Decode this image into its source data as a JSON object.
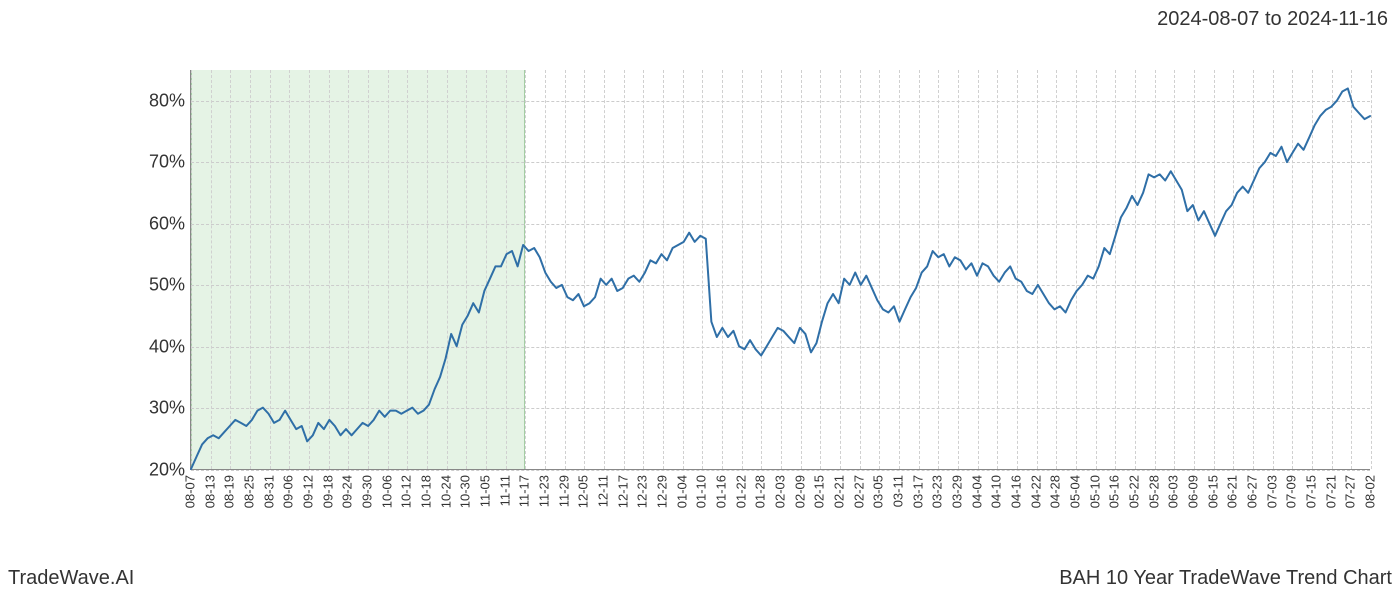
{
  "date_range": "2024-08-07 to 2024-11-16",
  "footer_left": "TradeWave.AI",
  "footer_right": "BAH 10 Year TradeWave Trend Chart",
  "chart": {
    "type": "line",
    "line_color": "#2f6fa7",
    "line_width": 2,
    "background_color": "#ffffff",
    "grid_color": "#d0d0d0",
    "highlight_color": "rgba(180,220,180,0.35)",
    "axis_color": "#888888",
    "text_color": "#333333",
    "ylim": [
      20,
      85
    ],
    "y_ticks": [
      20,
      30,
      40,
      50,
      60,
      70,
      80
    ],
    "y_tick_labels": [
      "20%",
      "30%",
      "40%",
      "50%",
      "60%",
      "70%",
      "80%"
    ],
    "y_label_fontsize": 18,
    "x_label_fontsize": 13,
    "x_label_rotation": -90,
    "x_labels": [
      "08-07",
      "08-13",
      "08-19",
      "08-25",
      "08-31",
      "09-06",
      "09-12",
      "09-18",
      "09-24",
      "09-30",
      "10-06",
      "10-12",
      "10-18",
      "10-24",
      "10-30",
      "11-05",
      "11-11",
      "11-17",
      "11-23",
      "11-29",
      "12-05",
      "12-11",
      "12-17",
      "12-23",
      "12-29",
      "01-04",
      "01-10",
      "01-16",
      "01-22",
      "01-28",
      "02-03",
      "02-09",
      "02-15",
      "02-21",
      "02-27",
      "03-05",
      "03-11",
      "03-17",
      "03-23",
      "03-29",
      "04-04",
      "04-10",
      "04-16",
      "04-22",
      "04-28",
      "05-04",
      "05-10",
      "05-16",
      "05-22",
      "05-28",
      "06-03",
      "06-09",
      "06-15",
      "06-21",
      "06-27",
      "07-03",
      "07-09",
      "07-15",
      "07-21",
      "07-27",
      "08-02"
    ],
    "highlight_start_idx": 0,
    "highlight_end_idx": 17,
    "values": [
      20,
      22,
      24,
      25,
      25.5,
      25,
      26,
      27,
      28,
      27.5,
      27,
      28,
      29.5,
      30,
      29,
      27.5,
      28,
      29.5,
      28,
      26.5,
      27,
      24.5,
      25.5,
      27.5,
      26.5,
      28,
      27,
      25.5,
      26.5,
      25.5,
      26.5,
      27.5,
      27,
      28,
      29.5,
      28.5,
      29.5,
      29.5,
      29,
      29.5,
      30,
      29,
      29.5,
      30.5,
      33,
      35,
      38,
      42,
      40,
      43.5,
      45,
      47,
      45.5,
      49,
      51,
      53,
      53,
      55,
      55.5,
      53,
      56.5,
      55.5,
      56,
      54.5,
      52,
      50.5,
      49.5,
      50,
      48,
      47.5,
      48.5,
      46.5,
      47,
      48,
      51,
      50,
      51,
      49,
      49.5,
      51,
      51.5,
      50.5,
      52,
      54,
      53.5,
      55,
      54,
      56,
      56.5,
      57,
      58.5,
      57,
      58,
      57.5,
      44,
      41.5,
      43,
      41.5,
      42.5,
      40,
      39.5,
      41,
      39.5,
      38.5,
      40,
      41.5,
      43,
      42.5,
      41.5,
      40.5,
      43,
      42,
      39,
      40.5,
      44,
      47,
      48.5,
      47,
      51,
      50,
      52,
      50,
      51.5,
      49.5,
      47.5,
      46,
      45.5,
      46.5,
      44,
      46,
      48,
      49.5,
      52,
      53,
      55.5,
      54.5,
      55,
      53,
      54.5,
      54,
      52.5,
      53.5,
      51.5,
      53.5,
      53,
      51.5,
      50.5,
      52,
      53,
      51,
      50.5,
      49,
      48.5,
      50,
      48.5,
      47,
      46,
      46.5,
      45.5,
      47.5,
      49,
      50,
      51.5,
      51,
      53,
      56,
      55,
      58,
      61,
      62.5,
      64.5,
      63,
      65,
      68,
      67.5,
      68,
      67,
      68.5,
      67,
      65.5,
      62,
      63,
      60.5,
      62,
      60,
      58,
      60,
      62,
      63,
      65,
      66,
      65,
      67,
      69,
      70,
      71.5,
      71,
      72.5,
      70,
      71.5,
      73,
      72,
      74,
      76,
      77.5,
      78.5,
      79,
      80,
      81.5,
      82,
      79,
      78,
      77,
      77.5
    ]
  }
}
